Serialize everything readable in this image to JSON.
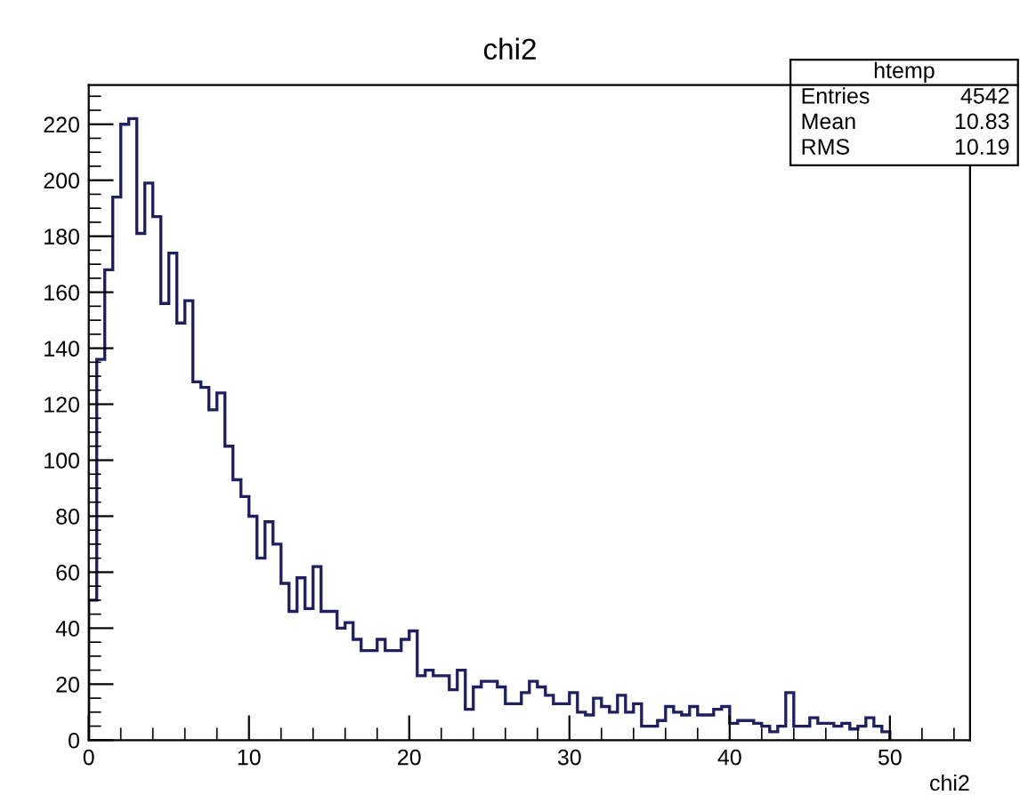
{
  "chart_data": {
    "type": "histogram",
    "title": "chi2",
    "xlabel": "chi2",
    "bins": [
      0,
      0.5,
      1,
      1.5,
      2,
      2.5,
      3,
      3.5,
      4,
      4.5,
      5,
      5.5,
      6,
      6.5,
      7,
      7.5,
      8,
      8.5,
      9,
      9.5,
      10,
      10.5,
      11,
      11.5,
      12,
      12.5,
      13,
      13.5,
      14,
      14.5,
      15,
      15.5,
      16,
      16.5,
      17,
      17.5,
      18,
      18.5,
      19,
      19.5,
      20,
      20.5,
      21,
      21.5,
      22,
      22.5,
      23,
      23.5,
      24,
      24.5,
      25,
      25.5,
      26,
      26.5,
      27,
      27.5,
      28,
      28.5,
      29,
      29.5,
      30,
      30.5,
      31,
      31.5,
      32,
      32.5,
      33,
      33.5,
      34,
      34.5,
      35,
      35.5,
      36,
      36.5,
      37,
      37.5,
      38,
      38.5,
      39,
      39.5,
      40,
      40.5,
      41,
      41.5,
      42,
      42.5,
      43,
      43.5,
      44,
      44.5,
      45,
      45.5,
      46,
      46.5,
      47,
      47.5,
      48,
      48.5,
      49,
      49.5,
      50
    ],
    "values": [
      50,
      136,
      168,
      194,
      220,
      222,
      181,
      199,
      187,
      156,
      174,
      149,
      157,
      128,
      126,
      118,
      124,
      105,
      93,
      87,
      80,
      65,
      78,
      70,
      56,
      46,
      58,
      47,
      62,
      46,
      46,
      40,
      42,
      36,
      32,
      32,
      36,
      32,
      32,
      36,
      39,
      23,
      25,
      23,
      23,
      18,
      25,
      11,
      19,
      21,
      21,
      19,
      13,
      13,
      17,
      21,
      19,
      16,
      13,
      13,
      17,
      10,
      9,
      15,
      12,
      10,
      16,
      10,
      13,
      5,
      5,
      7,
      12,
      10,
      9,
      12,
      9,
      9,
      11,
      12,
      6,
      7,
      7,
      6,
      5,
      3,
      5,
      17,
      5,
      5,
      8,
      6,
      6,
      5,
      6,
      4,
      5,
      8,
      5,
      3
    ],
    "color": "#202060",
    "xlim": [
      0,
      55
    ],
    "ylim": [
      0,
      234
    ],
    "xticks": [
      0,
      10,
      20,
      30,
      40,
      50
    ],
    "yticks": [
      0,
      20,
      40,
      60,
      80,
      100,
      120,
      140,
      160,
      180,
      200,
      220
    ],
    "annotations": [
      "htemp",
      "Entries",
      "4542",
      "Mean",
      "10.83",
      "RMS",
      "10.19"
    ],
    "grid": false
  }
}
